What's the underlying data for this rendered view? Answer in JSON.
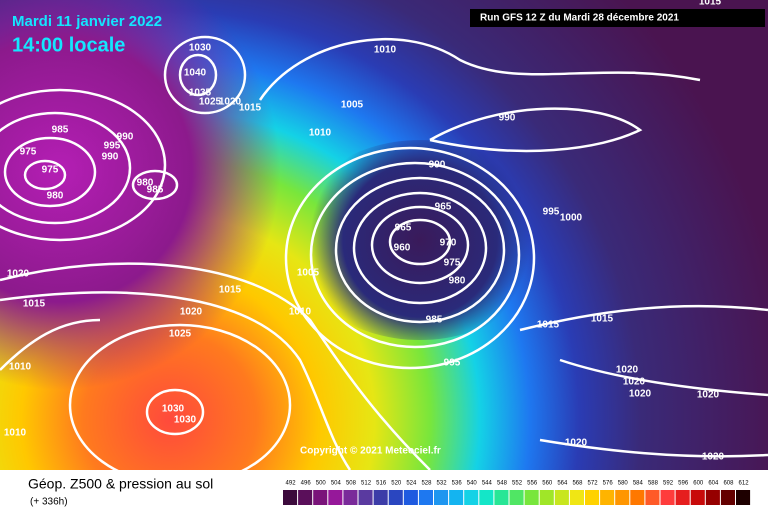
{
  "header": {
    "date": "Mardi 11 janvier 2022",
    "time": "14:00 locale",
    "run": "Run GFS 12 Z du Mardi 28 décembre 2021"
  },
  "copyright": "Copyright © 2021 Meteociel.fr",
  "footer": {
    "title": "Géop. Z500 & pression au sol",
    "lead": "(+ 336h)"
  },
  "isobar_labels": [
    1030,
    1040,
    1035,
    1025,
    1020,
    1015,
    1010,
    1005,
    1010,
    990,
    985,
    975,
    975,
    980,
    990,
    995,
    990,
    985,
    980,
    990,
    965,
    965,
    960,
    970,
    975,
    980,
    985,
    995,
    995,
    1000,
    1005,
    1010,
    1015,
    1020,
    1025,
    1020,
    1015,
    1010,
    1010,
    1030,
    1030,
    1015,
    1015,
    1020,
    1020,
    1020,
    1020,
    1020,
    1020,
    1015
  ],
  "legend": {
    "labels": [
      492,
      496,
      500,
      504,
      508,
      512,
      516,
      520,
      524,
      528,
      532,
      536,
      540,
      544,
      548,
      552,
      556,
      560,
      564,
      568,
      572,
      576,
      580,
      584,
      588,
      592,
      596,
      600,
      604,
      608,
      612
    ],
    "colors": [
      "#3c0a3c",
      "#5a0f5a",
      "#7a137a",
      "#96189a",
      "#7a2a9a",
      "#5a3aa0",
      "#3c3ca8",
      "#2a46c0",
      "#1e5ae0",
      "#1e78f0",
      "#1e96f0",
      "#14b4f0",
      "#14d2e6",
      "#14e6c8",
      "#28e696",
      "#50e664",
      "#78e63c",
      "#a0e628",
      "#c8e61e",
      "#f0e614",
      "#ffd200",
      "#ffb400",
      "#ff9600",
      "#ff7800",
      "#ff5a28",
      "#ff3c3c",
      "#e61e1e",
      "#c80a0a",
      "#960000",
      "#640000",
      "#1e0000"
    ]
  }
}
